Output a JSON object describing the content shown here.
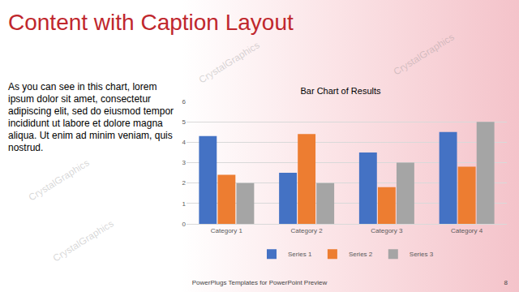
{
  "slide": {
    "title": "Content with Caption Layout",
    "caption": "As you can see in this chart, lorem ipsum dolor sit amet, consectetur adipiscing elit, sed do eiusmod tempor incididunt ut labore et dolore magna aliqua. Ut enim ad minim veniam, quis nostrud.",
    "footer": "PowerPlugs Templates for PowerPoint Preview",
    "page": 8,
    "watermark": "CrystalGraphics"
  },
  "chart_data": {
    "type": "bar",
    "title": "Bar Chart of Results",
    "categories": [
      "Category 1",
      "Category 2",
      "Category 3",
      "Category 4"
    ],
    "series": [
      {
        "name": "Series 1",
        "color": "#4472c4",
        "values": [
          4.3,
          2.5,
          3.5,
          4.5
        ]
      },
      {
        "name": "Series 2",
        "color": "#ed7d31",
        "values": [
          2.4,
          4.4,
          1.8,
          2.8
        ]
      },
      {
        "name": "Series 3",
        "color": "#a5a5a5",
        "values": [
          2.0,
          2.0,
          3.0,
          5.0
        ]
      }
    ],
    "ylim": [
      0,
      6
    ],
    "yticks": [
      0,
      1,
      2,
      3,
      4,
      5,
      6
    ],
    "grid": true,
    "legend": "bottom"
  }
}
